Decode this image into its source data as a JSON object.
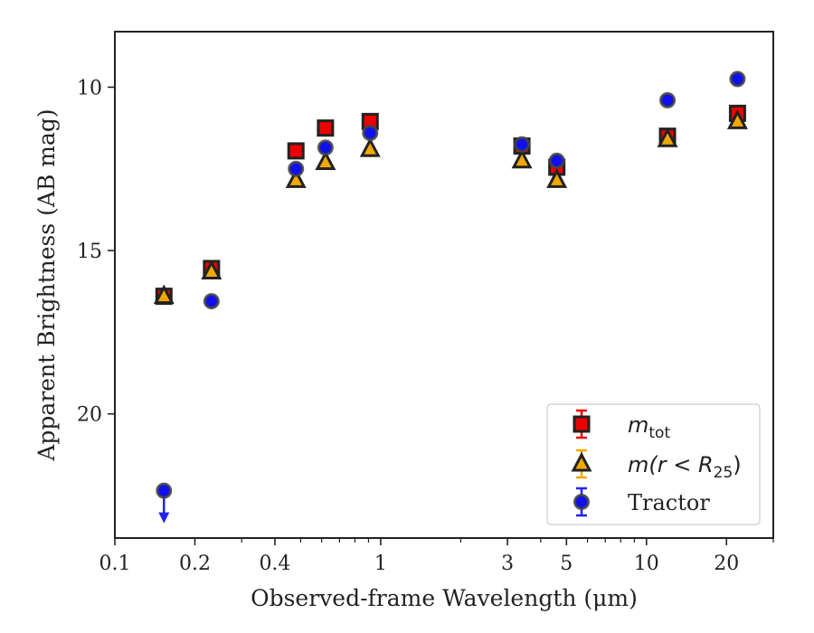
{
  "chart_data": {
    "type": "scatter",
    "title": "",
    "xlabel": "Observed-frame Wavelength (μm)",
    "ylabel": "Apparent Brightness (AB mag)",
    "x_scale": "log",
    "xlim": [
      0.1,
      30
    ],
    "ylim": [
      8.3,
      23.8
    ],
    "y_inverted": true,
    "x_ticks": [
      {
        "value": 0.1,
        "label": "0.1"
      },
      {
        "value": 0.2,
        "label": "0.2"
      },
      {
        "value": 0.4,
        "label": "0.4"
      },
      {
        "value": 1,
        "label": "1"
      },
      {
        "value": 3,
        "label": "3"
      },
      {
        "value": 5,
        "label": "5"
      },
      {
        "value": 10,
        "label": "10"
      },
      {
        "value": 20,
        "label": "20"
      }
    ],
    "x_minor_ticks": [
      0.3,
      0.5,
      0.6,
      0.7,
      0.8,
      0.9,
      2,
      4,
      6,
      7,
      8,
      9,
      30
    ],
    "y_ticks": [
      {
        "value": 10,
        "label": "10"
      },
      {
        "value": 15,
        "label": "15"
      },
      {
        "value": 20,
        "label": "20"
      }
    ],
    "legend_position": "lower-right",
    "series": [
      {
        "name": "m_tot",
        "legend_label": {
          "base": "m",
          "sub": "tot"
        },
        "marker": "square",
        "color": "#ee0000",
        "edge_color": "#222222",
        "points": [
          {
            "x": 0.153,
            "y": 16.4
          },
          {
            "x": 0.231,
            "y": 15.55
          },
          {
            "x": 0.48,
            "y": 11.95
          },
          {
            "x": 0.62,
            "y": 11.25
          },
          {
            "x": 0.913,
            "y": 11.05
          },
          {
            "x": 3.4,
            "y": 11.8
          },
          {
            "x": 4.6,
            "y": 12.45
          },
          {
            "x": 12,
            "y": 11.5
          },
          {
            "x": 22,
            "y": 10.8
          }
        ]
      },
      {
        "name": "m(r<R25)",
        "legend_label": {
          "base": "m(r < R",
          "sub": "25",
          "suffix": ")"
        },
        "marker": "triangle",
        "color": "#f0a800",
        "edge_color": "#222222",
        "points": [
          {
            "x": 0.153,
            "y": 16.4
          },
          {
            "x": 0.231,
            "y": 15.65
          },
          {
            "x": 0.48,
            "y": 12.85
          },
          {
            "x": 0.62,
            "y": 12.3
          },
          {
            "x": 0.913,
            "y": 11.9
          },
          {
            "x": 3.4,
            "y": 12.25
          },
          {
            "x": 4.6,
            "y": 12.85
          },
          {
            "x": 12,
            "y": 11.6
          },
          {
            "x": 22,
            "y": 11.05
          }
        ]
      },
      {
        "name": "Tractor",
        "legend_label": {
          "base": "Tractor"
        },
        "marker": "circle",
        "color": "#1010ee",
        "edge_color": "#444444",
        "points": [
          {
            "x": 0.153,
            "y": 22.35,
            "upper_limit": true
          },
          {
            "x": 0.231,
            "y": 16.55
          },
          {
            "x": 0.48,
            "y": 12.5
          },
          {
            "x": 0.62,
            "y": 11.85
          },
          {
            "x": 0.913,
            "y": 11.4
          },
          {
            "x": 3.4,
            "y": 11.75
          },
          {
            "x": 4.6,
            "y": 12.25
          },
          {
            "x": 12,
            "y": 10.4
          },
          {
            "x": 22,
            "y": 9.75
          }
        ]
      }
    ]
  }
}
